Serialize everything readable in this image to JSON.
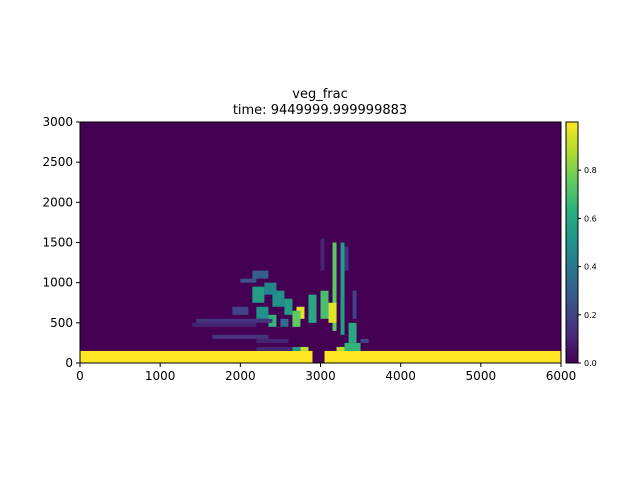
{
  "chart_data": {
    "type": "heatmap",
    "title": "veg_frac",
    "subtitle": "time: 9449999.999999883",
    "xlabel": "",
    "ylabel": "",
    "xlim": [
      0,
      6000
    ],
    "ylim": [
      0,
      3000
    ],
    "x_ticks": [
      "0",
      "1000",
      "2000",
      "3000",
      "4000",
      "5000",
      "6000"
    ],
    "y_ticks": [
      "0",
      "500",
      "1000",
      "1500",
      "2000",
      "2500",
      "3000"
    ],
    "colorbar": {
      "range": [
        0.0,
        1.0
      ],
      "ticks": [
        "0.0",
        "0.2",
        "0.4",
        "0.6",
        "0.8"
      ],
      "colormap": "viridis"
    },
    "grid_cell": [
      100,
      50
    ],
    "cells": [
      {
        "x": [
          0,
          2900
        ],
        "y": [
          0,
          150
        ],
        "v": 1.0
      },
      {
        "x": [
          3050,
          6000
        ],
        "y": [
          0,
          150
        ],
        "v": 1.0
      },
      {
        "x": [
          2750,
          2850
        ],
        "y": [
          150,
          200
        ],
        "v": 0.9
      },
      {
        "x": [
          2650,
          2750
        ],
        "y": [
          150,
          200
        ],
        "v": 0.55
      },
      {
        "x": [
          3200,
          3300
        ],
        "y": [
          150,
          200
        ],
        "v": 0.9
      },
      {
        "x": [
          3300,
          3500
        ],
        "y": [
          150,
          250
        ],
        "v": 0.65
      },
      {
        "x": [
          3500,
          3600
        ],
        "y": [
          250,
          300
        ],
        "v": 0.2
      },
      {
        "x": [
          3350,
          3450
        ],
        "y": [
          250,
          500
        ],
        "v": 0.6
      },
      {
        "x": [
          3250,
          3300
        ],
        "y": [
          350,
          1500
        ],
        "v": 0.55
      },
      {
        "x": [
          3150,
          3200
        ],
        "y": [
          400,
          1500
        ],
        "v": 0.75
      },
      {
        "x": [
          3100,
          3200
        ],
        "y": [
          500,
          750
        ],
        "v": 0.95
      },
      {
        "x": [
          3000,
          3100
        ],
        "y": [
          550,
          900
        ],
        "v": 0.7
      },
      {
        "x": [
          2850,
          2950
        ],
        "y": [
          500,
          850
        ],
        "v": 0.6
      },
      {
        "x": [
          2700,
          2800
        ],
        "y": [
          550,
          700
        ],
        "v": 0.95
      },
      {
        "x": [
          2650,
          2750
        ],
        "y": [
          450,
          650
        ],
        "v": 0.75
      },
      {
        "x": [
          2550,
          2650
        ],
        "y": [
          600,
          800
        ],
        "v": 0.55
      },
      {
        "x": [
          2400,
          2550
        ],
        "y": [
          700,
          900
        ],
        "v": 0.5
      },
      {
        "x": [
          2300,
          2450
        ],
        "y": [
          850,
          1000
        ],
        "v": 0.45
      },
      {
        "x": [
          2150,
          2300
        ],
        "y": [
          750,
          950
        ],
        "v": 0.55
      },
      {
        "x": [
          2200,
          2350
        ],
        "y": [
          550,
          700
        ],
        "v": 0.5
      },
      {
        "x": [
          2350,
          2450
        ],
        "y": [
          450,
          600
        ],
        "v": 0.65
      },
      {
        "x": [
          2500,
          2600
        ],
        "y": [
          450,
          550
        ],
        "v": 0.35
      },
      {
        "x": [
          2150,
          2350
        ],
        "y": [
          1050,
          1150
        ],
        "v": 0.3
      },
      {
        "x": [
          2000,
          2200
        ],
        "y": [
          1000,
          1050
        ],
        "v": 0.25
      },
      {
        "x": [
          1900,
          2100
        ],
        "y": [
          600,
          700
        ],
        "v": 0.2
      },
      {
        "x": [
          1450,
          2400
        ],
        "y": [
          500,
          550
        ],
        "v": 0.15
      },
      {
        "x": [
          1400,
          2200
        ],
        "y": [
          450,
          500
        ],
        "v": 0.1
      },
      {
        "x": [
          1650,
          2350
        ],
        "y": [
          300,
          350
        ],
        "v": 0.15
      },
      {
        "x": [
          2200,
          2600
        ],
        "y": [
          250,
          300
        ],
        "v": 0.1
      },
      {
        "x": [
          2200,
          2650
        ],
        "y": [
          150,
          200
        ],
        "v": 0.1
      },
      {
        "x": [
          3000,
          3050
        ],
        "y": [
          1150,
          1550
        ],
        "v": 0.1
      },
      {
        "x": [
          3400,
          3450
        ],
        "y": [
          550,
          900
        ],
        "v": 0.2
      },
      {
        "x": [
          3300,
          3350
        ],
        "y": [
          1150,
          1450
        ],
        "v": 0.15
      }
    ]
  }
}
